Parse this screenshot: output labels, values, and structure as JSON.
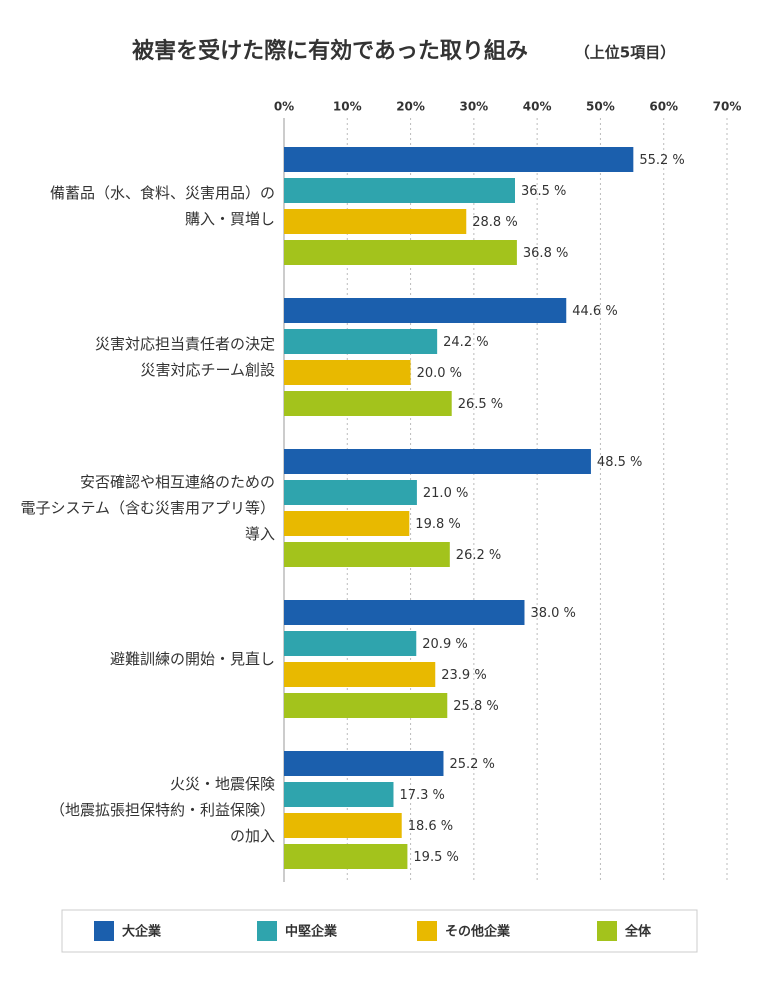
{
  "chart_data": {
    "type": "bar",
    "orientation": "horizontal",
    "title": "被害を受けた際に有効であった取り組み",
    "subtitle": "（上位5項目）",
    "categories": [
      "備蓄品（水、食料、災害用品）の\n購入・買増し",
      "災害対応担当責任者の決定\n災害対応チーム創設",
      "安否確認や相互連絡のための\n電子システム（含む災害用アプリ等）\n導入",
      "避難訓練の開始・見直し",
      "火災・地震保険\n（地震拡張担保特約・利益保険）\nの加入"
    ],
    "series": [
      {
        "name": "大企業",
        "color": "#1b5fad",
        "values": [
          55.2,
          44.6,
          48.5,
          38.0,
          25.2
        ],
        "value_labels": [
          "55.2 %",
          "44.6 %",
          "48.5 %",
          "38.0 %",
          "25.2 %"
        ]
      },
      {
        "name": "中堅企業",
        "color": "#2fa4ad",
        "values": [
          36.5,
          24.2,
          21.0,
          20.9,
          17.3
        ],
        "value_labels": [
          "36.5 %",
          "24.2 %",
          "21.0 %",
          "20.9 %",
          "17.3 %"
        ]
      },
      {
        "name": "その他企業",
        "color": "#e8b900",
        "values": [
          28.8,
          20.0,
          19.8,
          23.9,
          18.6
        ],
        "value_labels": [
          "28.8 %",
          "20.0 %",
          "19.8 %",
          "23.9 %",
          "18.6 %"
        ]
      },
      {
        "name": "全体",
        "color": "#a3c31c",
        "values": [
          36.8,
          26.5,
          26.2,
          25.8,
          19.5
        ],
        "value_labels": [
          "36.8 %",
          "26.5 %",
          "26.2 %",
          "25.8 %",
          "19.5 %"
        ]
      }
    ],
    "xlim": [
      0,
      70
    ],
    "xticks": [
      {
        "value": 0,
        "label": "0%"
      },
      {
        "value": 10,
        "label": "10%"
      },
      {
        "value": 20,
        "label": "20%"
      },
      {
        "value": 30,
        "label": "30%"
      },
      {
        "value": 40,
        "label": "40%"
      },
      {
        "value": 50,
        "label": "50%"
      },
      {
        "value": 60,
        "label": "60%"
      },
      {
        "value": 70,
        "label": "70%"
      }
    ],
    "grid": true,
    "legend": "bottom"
  }
}
